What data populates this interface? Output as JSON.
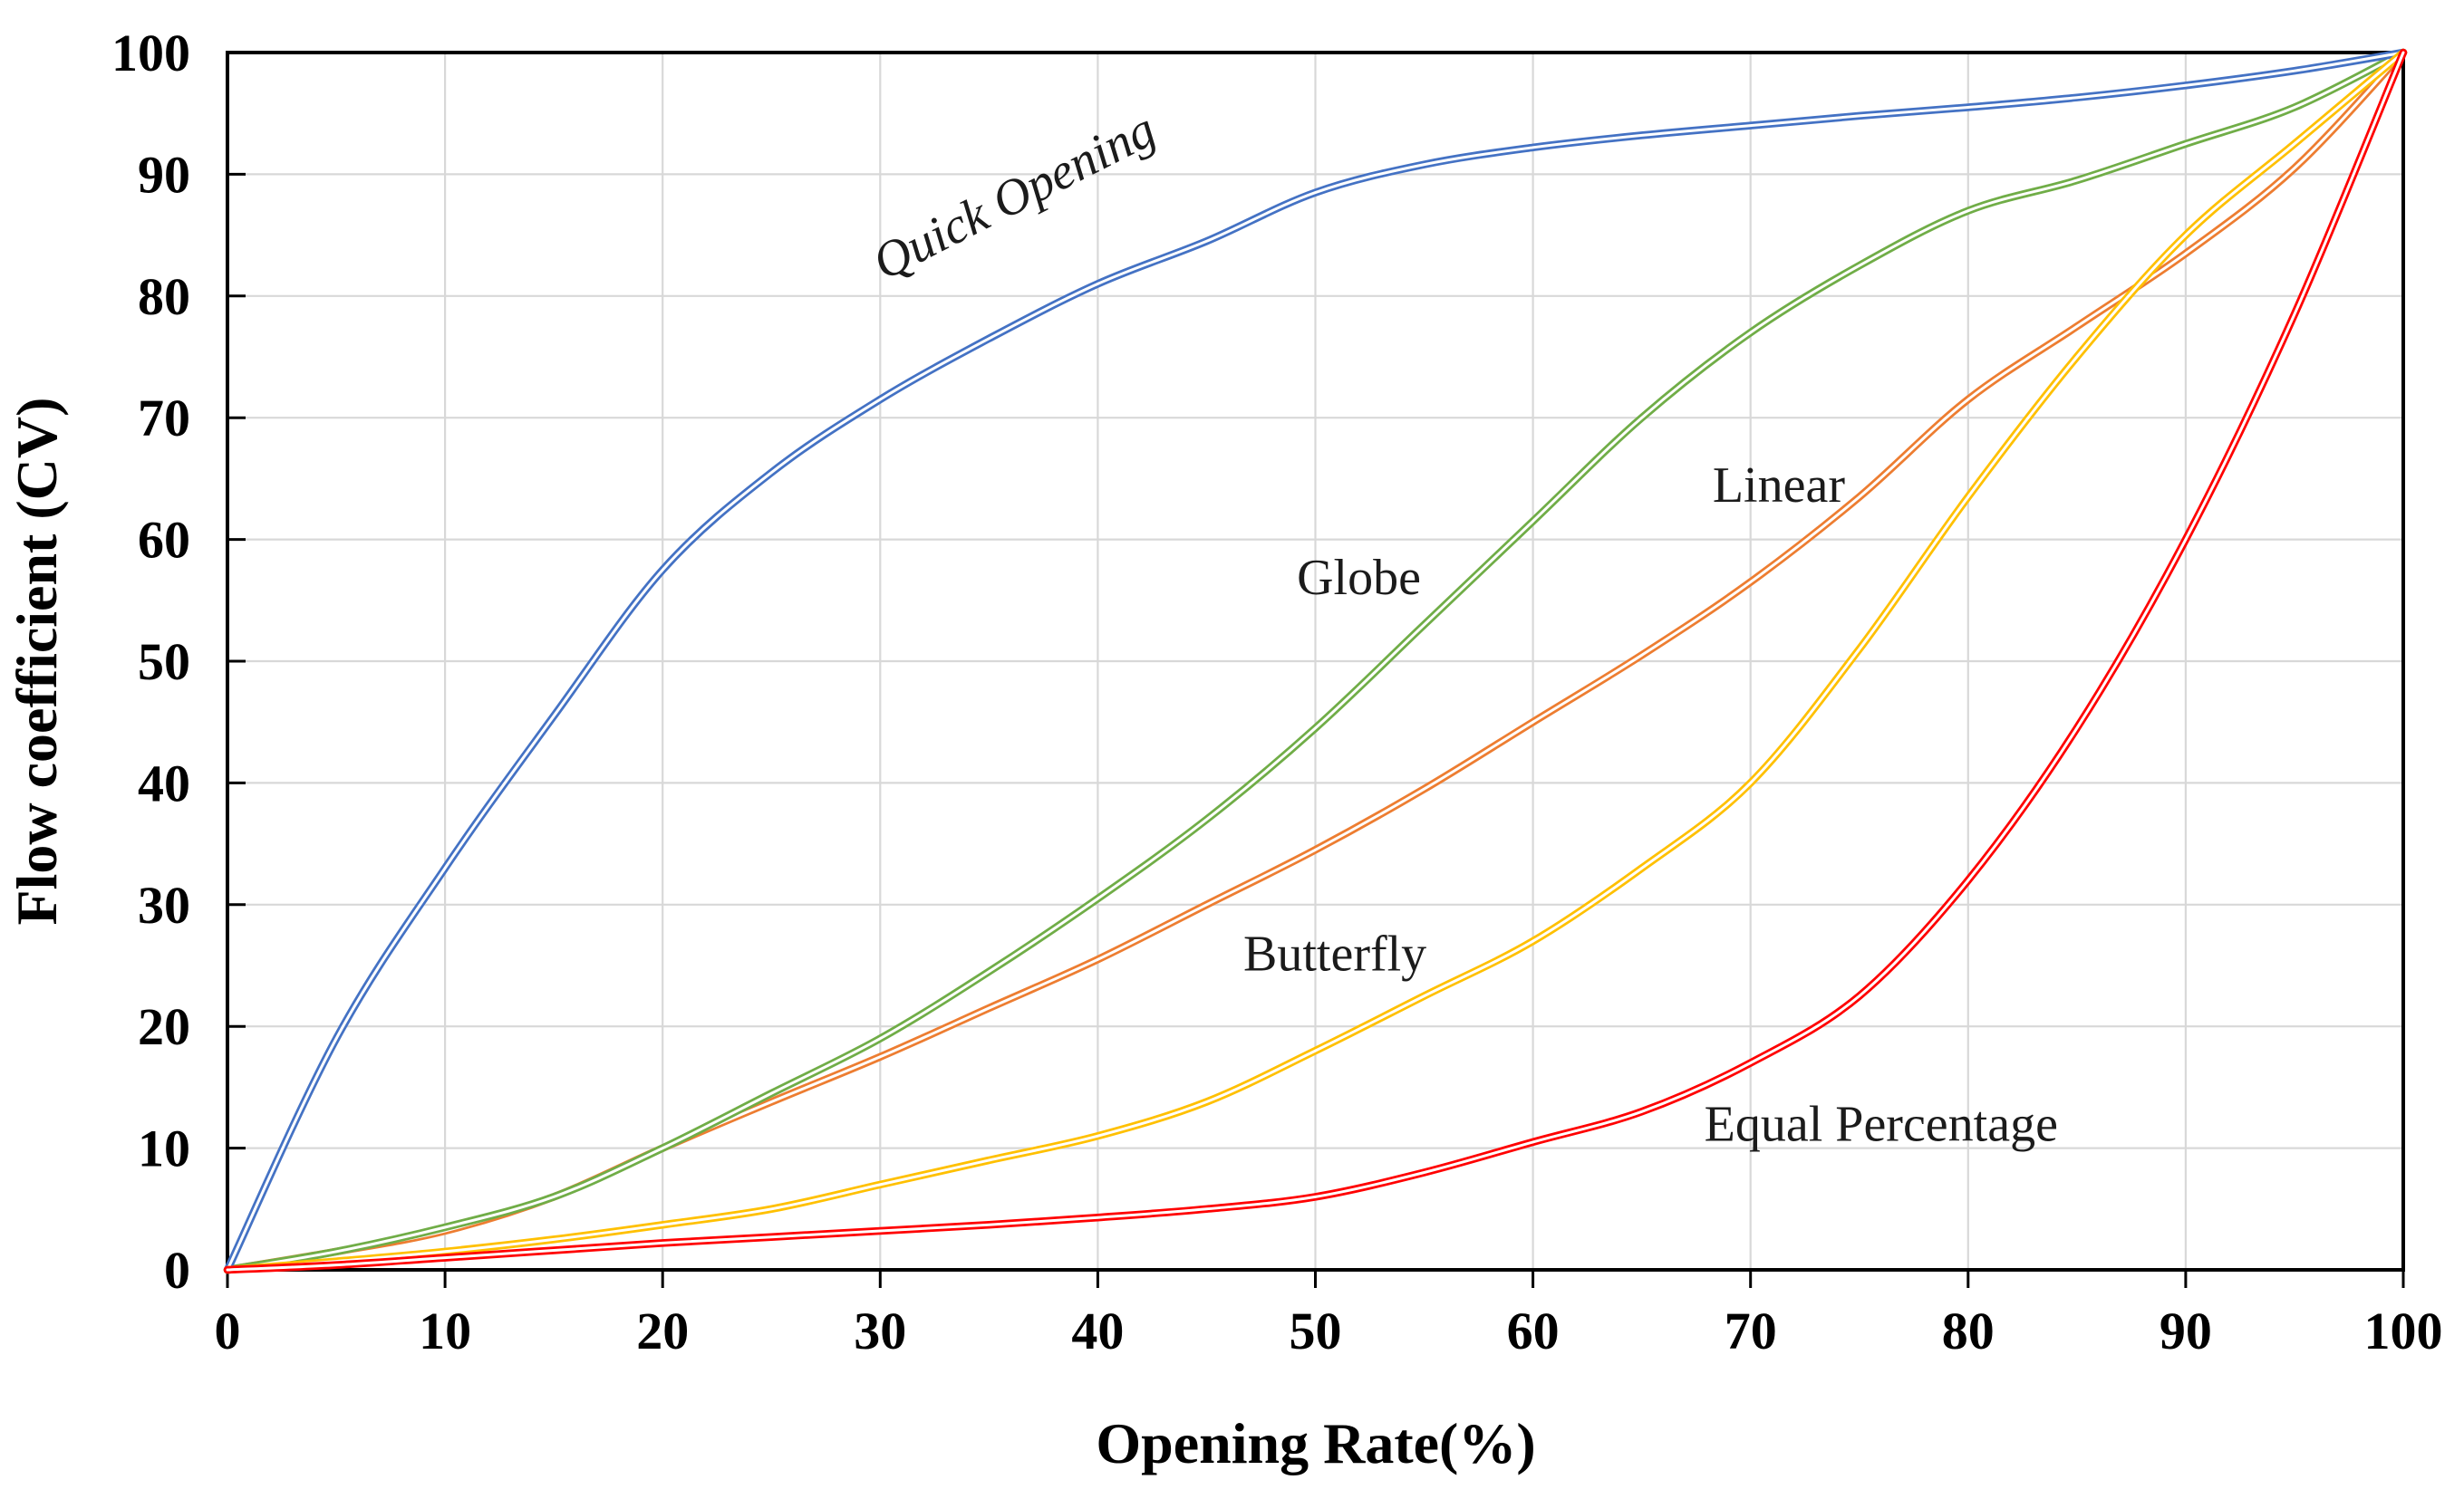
{
  "chart_data": {
    "type": "line",
    "title": "",
    "xlabel": "Opening Rate(%)",
    "ylabel": "Flow coefficient (CV)",
    "xlim": [
      0,
      100
    ],
    "ylim": [
      0,
      100
    ],
    "grid": true,
    "legend_position": "inline-annotations",
    "xticks": [
      0,
      10,
      20,
      30,
      40,
      50,
      60,
      70,
      80,
      90,
      100
    ],
    "yticks": [
      0,
      10,
      20,
      30,
      40,
      50,
      60,
      70,
      80,
      90,
      100
    ],
    "x": [
      0,
      5,
      10,
      15,
      20,
      25,
      30,
      35,
      40,
      45,
      50,
      55,
      60,
      65,
      70,
      75,
      80,
      85,
      90,
      95,
      100
    ],
    "series": [
      {
        "name": "Linear",
        "color": "#ED7D31",
        "values": [
          0,
          1.5,
          3.2,
          6,
          10,
          13.8,
          17.5,
          21.5,
          25.5,
          30,
          34.5,
          39.5,
          45,
          50.5,
          56.5,
          63.5,
          71.5,
          77.5,
          83.5,
          90.5,
          100
        ]
      },
      {
        "name": "Globe",
        "color": "#70AD47",
        "values": [
          0,
          1.5,
          3.5,
          6,
          10,
          14.5,
          19,
          24.5,
          30.5,
          37,
          44.5,
          53,
          61.5,
          70,
          77,
          82.5,
          87,
          89.5,
          92.5,
          95.5,
          100
        ]
      },
      {
        "name": "Quick Opening",
        "color": "#4472C4",
        "values": [
          0,
          19,
          33,
          45.5,
          57.5,
          65.5,
          71.5,
          76.5,
          81,
          84.5,
          88.5,
          90.8,
          92.2,
          93.2,
          94,
          94.8,
          95.5,
          96.3,
          97.3,
          98.5,
          100
        ]
      },
      {
        "name": "Butterfly",
        "color": "#FFC000",
        "values": [
          0,
          0.7,
          1.5,
          2.5,
          3.7,
          5,
          7,
          9,
          11,
          13.8,
          18,
          22.5,
          27,
          33,
          40,
          51,
          63.5,
          75,
          85,
          92.5,
          100
        ]
      },
      {
        "name": "Equal Percentage",
        "color": "#FF0000",
        "values": [
          0,
          0.4,
          1,
          1.6,
          2.2,
          2.7,
          3.2,
          3.7,
          4.3,
          5,
          6,
          8,
          10.5,
          13,
          17,
          22.5,
          32,
          44.5,
          60,
          78.5,
          100
        ]
      }
    ],
    "annotations": [
      {
        "text": "Quick Opening",
        "x": 36.5,
        "y": 87.0,
        "rotate": -27,
        "italic": true
      },
      {
        "text": "Globe",
        "x": 52.0,
        "y": 55.5,
        "rotate": 0,
        "italic": false
      },
      {
        "text": "Linear",
        "x": 71.3,
        "y": 63.1,
        "rotate": 0,
        "italic": false
      },
      {
        "text": "Butterfly",
        "x": 50.9,
        "y": 24.6,
        "rotate": 0,
        "italic": false
      },
      {
        "text": "Equal Percentage",
        "x": 76.0,
        "y": 10.6,
        "rotate": 0,
        "italic": false
      }
    ],
    "styles": {
      "background": "#FFFFFF",
      "grid_color": "#D8D8D8",
      "axis_color": "#000000",
      "tick_label_color": "#000000",
      "line_outer_width": 8.5,
      "line_inner_width": 3,
      "line_inner_color": "#FFFFFF"
    }
  }
}
